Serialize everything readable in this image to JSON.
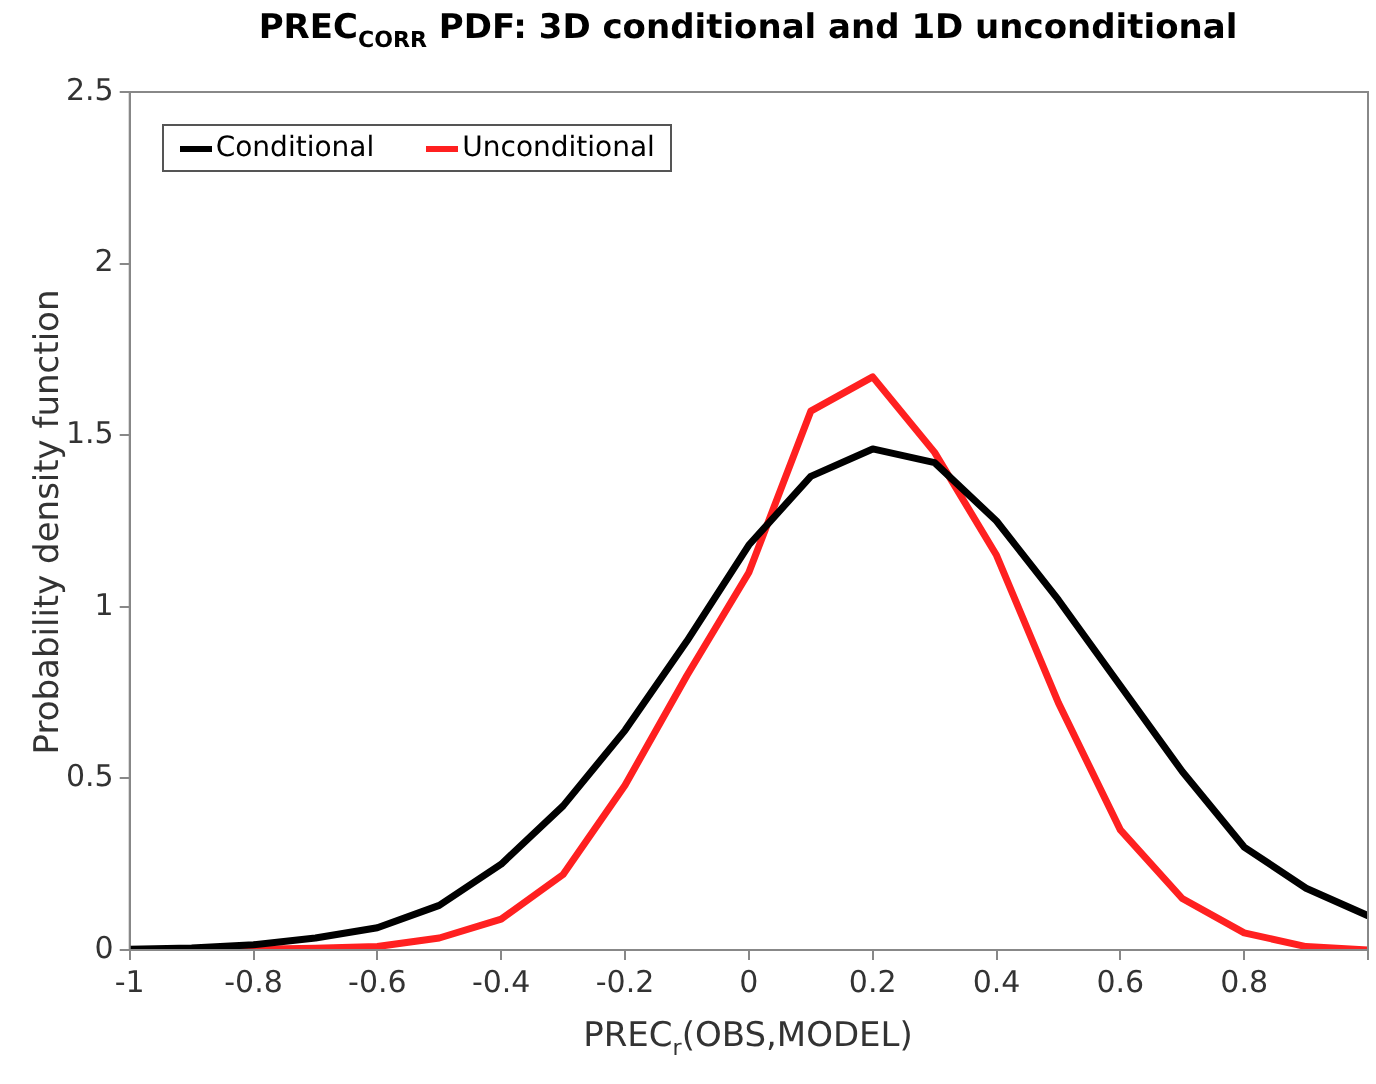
{
  "chart_data": {
    "type": "line",
    "title": "PREC$_{CORR}$ PDF: 3D conditional and 1D unconditional",
    "xlabel": "PREC$_{r}$(OBS,MODEL)",
    "ylabel": "Probability density function",
    "x": [
      -1,
      -0.9,
      -0.8,
      -0.7,
      -0.6,
      -0.5,
      -0.4,
      -0.3,
      -0.2,
      -0.1,
      0,
      0.1,
      0.2,
      0.3,
      0.4,
      0.5,
      0.6,
      0.7,
      0.8,
      0.9,
      1
    ],
    "series": [
      {
        "name": "Conditional",
        "color": "#000000",
        "values": [
          0.002,
          0.006,
          0.015,
          0.035,
          0.065,
          0.13,
          0.25,
          0.42,
          0.64,
          0.9,
          1.18,
          1.38,
          1.46,
          1.42,
          1.25,
          1.02,
          0.77,
          0.52,
          0.3,
          0.18,
          0.1
        ]
      },
      {
        "name": "Unconditional",
        "color": "#ff2020",
        "values": [
          0,
          0,
          0.002,
          0.005,
          0.01,
          0.035,
          0.09,
          0.22,
          0.48,
          0.8,
          1.1,
          1.57,
          1.67,
          1.45,
          1.15,
          0.72,
          0.35,
          0.15,
          0.05,
          0.01,
          0
        ]
      }
    ],
    "xlim": [
      -1,
      1
    ],
    "xticks": [
      -1,
      -0.8,
      -0.6,
      -0.4,
      -0.2,
      0,
      0.2,
      0.4,
      0.6,
      0.8,
      {
        "value": 1,
        "label": null
      }
    ],
    "ylim": [
      0,
      2.5
    ],
    "yticks": [
      0,
      0.5,
      1,
      1.5,
      2,
      2.5
    ],
    "grid": false,
    "legend": "top left",
    "marker": "none",
    "line_style": "solid"
  }
}
